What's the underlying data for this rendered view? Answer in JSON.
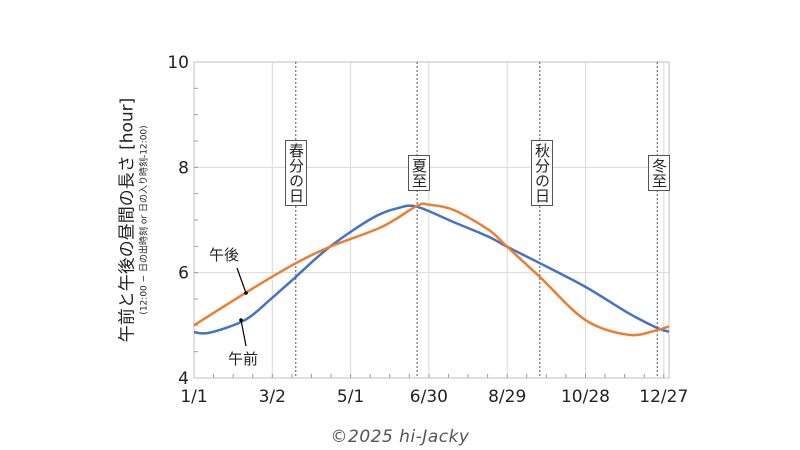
{
  "chart_data": {
    "type": "line",
    "title": "",
    "ylabel": "午前と午後の昼間の長さ [hour]",
    "ylabel_sub": "(12:00 − 日の出時刻 or 日の入り時刻-12:00)",
    "xlabel": "",
    "ylim": [
      4,
      10
    ],
    "yticks": [
      "4",
      "6",
      "8",
      "10"
    ],
    "xlim_day": [
      0,
      364
    ],
    "xticks": [
      {
        "day": 0,
        "label": "1/1"
      },
      {
        "day": 60,
        "label": "3/2"
      },
      {
        "day": 120,
        "label": "5/1"
      },
      {
        "day": 180,
        "label": "6/30"
      },
      {
        "day": 240,
        "label": "8/29"
      },
      {
        "day": 300,
        "label": "10/28"
      },
      {
        "day": 360,
        "label": "12/27"
      }
    ],
    "grid": true,
    "markers": [
      {
        "day": 78,
        "label": "春分の日"
      },
      {
        "day": 171,
        "label": "夏至"
      },
      {
        "day": 265,
        "label": "秋分の日"
      },
      {
        "day": 355,
        "label": "冬至"
      }
    ],
    "series": [
      {
        "name": "午前",
        "color": "#4472c4",
        "x": [
          0,
          12,
          39,
          58,
          78,
          104,
          137,
          157,
          171,
          199,
          226,
          240,
          265,
          300,
          333,
          355,
          364
        ],
        "y": [
          4.87,
          4.86,
          5.1,
          5.48,
          5.92,
          6.49,
          7.04,
          7.23,
          7.25,
          6.96,
          6.68,
          6.49,
          6.18,
          5.73,
          5.23,
          4.95,
          4.88
        ]
      },
      {
        "name": "午後",
        "color": "#ed7d31",
        "x": [
          0,
          43,
          78,
          104,
          144,
          171,
          180,
          199,
          226,
          240,
          265,
          300,
          333,
          355,
          364
        ],
        "y": [
          5.0,
          5.67,
          6.18,
          6.49,
          6.87,
          7.27,
          7.29,
          7.19,
          6.81,
          6.49,
          5.92,
          5.1,
          4.82,
          4.91,
          4.98
        ]
      }
    ]
  },
  "labels": {
    "am": "午前",
    "pm": "午後"
  },
  "copyright": "©2025 hi-Jacky"
}
